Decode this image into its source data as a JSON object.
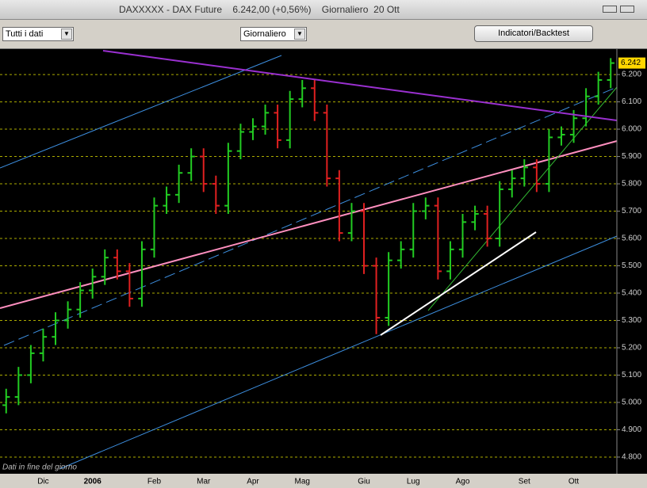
{
  "window": {
    "title": "DAXXXXX - DAX Future    6.242,00 (+0,56%)    Giornaliero  20 Ott"
  },
  "toolbar": {
    "range": "Tutti i dati",
    "period": "Giornaliero",
    "button": "Indicatori/Backtest"
  },
  "chart_data": {
    "type": "ohlc",
    "note": "Dati in fine del giorno",
    "categories": [
      null,
      null,
      null,
      "Dic",
      null,
      null,
      null,
      "2006",
      null,
      null,
      null,
      null,
      "Feb",
      null,
      null,
      null,
      "Mar",
      null,
      null,
      null,
      "Apr",
      null,
      null,
      null,
      "Mag",
      null,
      null,
      null,
      null,
      "Giu",
      null,
      null,
      null,
      "Lug",
      null,
      null,
      null,
      "Ago",
      null,
      null,
      null,
      null,
      "Set",
      null,
      null,
      null,
      "Ott",
      null,
      null,
      null
    ],
    "open": [
      4990,
      5020,
      5100,
      5180,
      5240,
      5300,
      5340,
      5410,
      5460,
      5530,
      5480,
      5380,
      5560,
      5720,
      5760,
      5840,
      5900,
      5800,
      5720,
      5920,
      5990,
      6010,
      6060,
      5960,
      6110,
      6150,
      6060,
      5820,
      5620,
      5700,
      5500,
      5310,
      5520,
      5560,
      5700,
      5720,
      5480,
      5560,
      5660,
      5690,
      5600,
      5780,
      5820,
      5860,
      5800,
      5970,
      5980,
      6040,
      6120,
      6180
    ],
    "high": [
      5050,
      5130,
      5210,
      5270,
      5330,
      5370,
      5440,
      5490,
      5560,
      5560,
      5510,
      5590,
      5750,
      5790,
      5870,
      5930,
      5930,
      5830,
      5950,
      6020,
      6040,
      6090,
      6090,
      6140,
      6180,
      6180,
      6090,
      5850,
      5730,
      5730,
      5530,
      5550,
      5590,
      5730,
      5750,
      5750,
      5590,
      5690,
      5720,
      5720,
      5810,
      5850,
      5890,
      5890,
      6000,
      6010,
      6070,
      6150,
      6210,
      6260
    ],
    "low": [
      4960,
      4990,
      5070,
      5150,
      5210,
      5270,
      5310,
      5380,
      5430,
      5450,
      5350,
      5350,
      5530,
      5690,
      5730,
      5810,
      5770,
      5690,
      5690,
      5890,
      5960,
      5980,
      5930,
      5930,
      6080,
      6030,
      5790,
      5590,
      5590,
      5470,
      5250,
      5280,
      5490,
      5530,
      5670,
      5450,
      5450,
      5530,
      5630,
      5570,
      5570,
      5750,
      5790,
      5770,
      5770,
      5940,
      5950,
      6010,
      6090,
      6150
    ],
    "close": [
      5020,
      5100,
      5180,
      5240,
      5300,
      5340,
      5410,
      5460,
      5530,
      5480,
      5380,
      5560,
      5720,
      5760,
      5840,
      5900,
      5800,
      5720,
      5920,
      5990,
      6010,
      6060,
      5960,
      6110,
      6150,
      6060,
      5820,
      5620,
      5700,
      5500,
      5310,
      5520,
      5560,
      5700,
      5720,
      5480,
      5560,
      5660,
      5690,
      5600,
      5780,
      5820,
      5860,
      5800,
      5970,
      5980,
      6040,
      6120,
      6180,
      6242
    ],
    "up_color": "#22cc22",
    "down_color": "#e02020",
    "last_value": {
      "value": 6242,
      "label": "6.242"
    },
    "ylim": [
      4739,
      6293
    ],
    "yticks": [
      {
        "value": 4800,
        "label": "4.800"
      },
      {
        "value": 4900,
        "label": "4.900"
      },
      {
        "value": 5000,
        "label": "5.000"
      },
      {
        "value": 5100,
        "label": "5.100"
      },
      {
        "value": 5200,
        "label": "5.200"
      },
      {
        "value": 5300,
        "label": "5.300"
      },
      {
        "value": 5400,
        "label": "5.400"
      },
      {
        "value": 5500,
        "label": "5.500"
      },
      {
        "value": 5600,
        "label": "5.600"
      },
      {
        "value": 5700,
        "label": "5.700"
      },
      {
        "value": 5800,
        "label": "5.800"
      },
      {
        "value": 5900,
        "label": "5.900"
      },
      {
        "value": 6000,
        "label": "6.000"
      },
      {
        "value": 6100,
        "label": "6.100"
      },
      {
        "value": 6200,
        "label": "6.200"
      }
    ],
    "grid": true,
    "grid_color": "#d8d800"
  }
}
